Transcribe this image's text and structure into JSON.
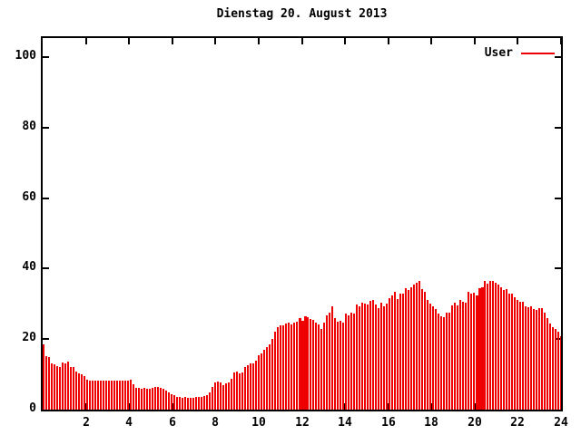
{
  "title": "Dienstag 20. August 2013",
  "legend": {
    "label": "User"
  },
  "colors": {
    "bar": "#ee0000",
    "axis": "#000000",
    "background": "#ffffff"
  },
  "chart_data": {
    "type": "bar",
    "title": "Dienstag 20. August 2013",
    "xlabel": "",
    "ylabel": "",
    "xlim": [
      0,
      24
    ],
    "ylim": [
      0,
      105
    ],
    "x_ticks": [
      2,
      4,
      6,
      8,
      10,
      12,
      14,
      16,
      18,
      20,
      22,
      24
    ],
    "y_ticks": [
      0,
      20,
      40,
      60,
      80,
      100
    ],
    "grid": false,
    "legend_position": "top-right",
    "series": [
      {
        "name": "User",
        "color": "#ee0000",
        "interval_hours": 0.125,
        "values": [
          18.5,
          15.2,
          14.8,
          13.0,
          12.9,
          12.4,
          12.0,
          13.4,
          13.2,
          13.5,
          12.0,
          12.2,
          10.9,
          10.4,
          10.0,
          9.4,
          8.6,
          8.3,
          8.2,
          8.2,
          8.3,
          8.2,
          8.1,
          8.2,
          8.2,
          8.3,
          8.2,
          8.1,
          8.2,
          8.2,
          8.1,
          8.3,
          8.6,
          7.2,
          6.2,
          6.1,
          6.0,
          6.1,
          6.0,
          5.9,
          6.1,
          6.4,
          6.5,
          6.2,
          5.9,
          5.3,
          4.8,
          4.4,
          4.1,
          3.7,
          3.5,
          3.4,
          3.5,
          3.4,
          3.3,
          3.4,
          3.5,
          3.5,
          3.6,
          3.9,
          4.1,
          5.0,
          6.5,
          7.8,
          8.0,
          7.6,
          6.9,
          7.5,
          7.6,
          8.8,
          10.5,
          10.8,
          10.4,
          10.5,
          12.1,
          12.6,
          13.0,
          13.2,
          13.9,
          15.5,
          16.0,
          17.0,
          17.7,
          18.6,
          20.0,
          22.0,
          23.4,
          23.8,
          24.0,
          24.3,
          24.6,
          24.2,
          24.8,
          25.0,
          26.0,
          25.2,
          26.5,
          26.3,
          25.6,
          25.4,
          24.8,
          24.2,
          23.0,
          24.8,
          26.8,
          27.4,
          29.2,
          26.0,
          25.0,
          25.3,
          24.8,
          27.2,
          26.8,
          27.6,
          27.2,
          29.8,
          29.3,
          30.3,
          30.0,
          29.8,
          30.8,
          31.2,
          29.8,
          28.8,
          30.3,
          29.4,
          30.0,
          31.5,
          32.5,
          33.5,
          31.3,
          32.8,
          33.0,
          34.5,
          34.0,
          34.8,
          35.5,
          36.0,
          36.5,
          34.2,
          33.4,
          31.2,
          30.0,
          29.2,
          28.5,
          27.3,
          26.5,
          26.2,
          27.6,
          27.5,
          29.5,
          30.4,
          29.6,
          31.2,
          30.6,
          30.3,
          33.5,
          33.0,
          33.2,
          32.5,
          34.4,
          34.6,
          36.4,
          35.8,
          36.6,
          36.5,
          36.0,
          35.4,
          34.6,
          34.0,
          34.3,
          33.0,
          32.8,
          31.8,
          31.0,
          30.7,
          30.5,
          29.3,
          29.0,
          29.4,
          28.5,
          28.3,
          28.8,
          28.9,
          27.5,
          26.0,
          24.5,
          23.5,
          23.0,
          22.0,
          20.8,
          17.5
        ],
        "merged_bar_indices": [
          94,
          95,
          96,
          159,
          160,
          161
        ]
      }
    ]
  }
}
